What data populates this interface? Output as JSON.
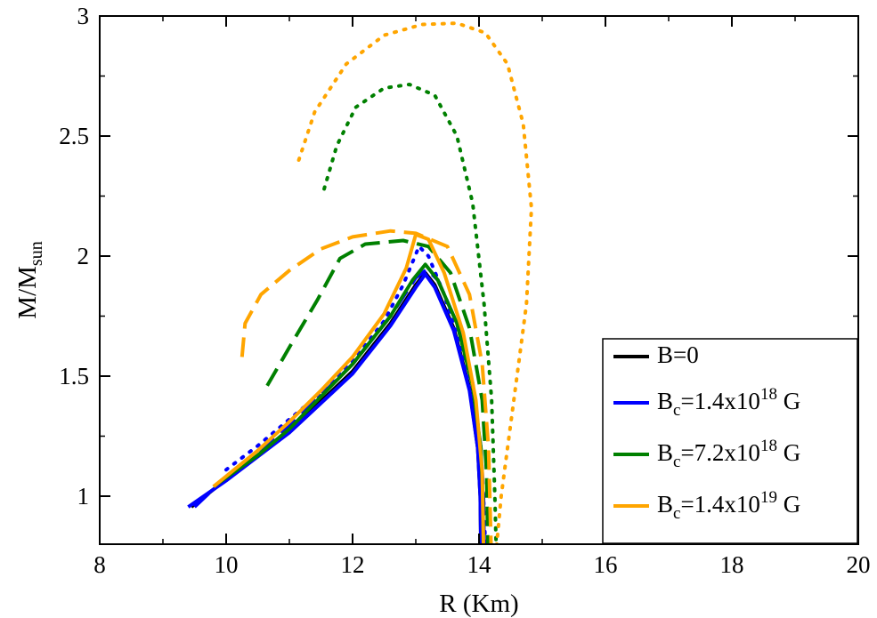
{
  "chart_data": {
    "type": "line",
    "title": "",
    "xlabel": "R (Km)",
    "ylabel": {
      "base": "M/M",
      "sub": "sun"
    },
    "xlim": [
      8,
      20
    ],
    "ylim": [
      0.8,
      3.0
    ],
    "x_ticks": [
      8,
      10,
      12,
      14,
      16,
      18,
      20
    ],
    "x_tick_labels": [
      "8",
      "10",
      "12",
      "14",
      "16",
      "18",
      "20"
    ],
    "y_ticks": [
      1,
      1.5,
      2,
      2.5,
      3
    ],
    "y_tick_labels": [
      "1",
      "1.5",
      "2",
      "2.5",
      "3"
    ],
    "grid": false,
    "legend_position": "bottom-right",
    "legend": [
      {
        "base": "B=0",
        "sub": "",
        "mid": "",
        "sup": "",
        "tail": "",
        "color": "#000000"
      },
      {
        "base": "B",
        "sub": "c",
        "mid": "=1.4x10",
        "sup": "18",
        "tail": " G",
        "color": "#0000ff"
      },
      {
        "base": "B",
        "sub": "c",
        "mid": "=7.2x10",
        "sup": "18",
        "tail": " G",
        "color": "#008000"
      },
      {
        "base": "B",
        "sub": "c",
        "mid": "=1.4x10",
        "sup": "19",
        "tail": " G",
        "color": "#ffa500"
      }
    ],
    "series": [
      {
        "name": "B=0",
        "color": "#000000",
        "style": "solid",
        "points": [
          [
            9.45,
            0.955
          ],
          [
            10,
            1.07
          ],
          [
            11,
            1.27
          ],
          [
            12,
            1.52
          ],
          [
            12.6,
            1.72
          ],
          [
            13.0,
            1.88
          ],
          [
            13.15,
            1.93
          ],
          [
            13.3,
            1.88
          ],
          [
            13.6,
            1.7
          ],
          [
            13.85,
            1.45
          ],
          [
            13.98,
            1.2
          ],
          [
            14.02,
            1.0
          ],
          [
            14.03,
            0.8
          ]
        ]
      },
      {
        "name": "Bc=1.4x10^18 G (parallel)",
        "color": "#0000ff",
        "style": "solid",
        "points": [
          [
            9.4,
            0.955
          ],
          [
            10,
            1.065
          ],
          [
            11,
            1.265
          ],
          [
            12,
            1.51
          ],
          [
            12.6,
            1.71
          ],
          [
            13.0,
            1.87
          ],
          [
            13.15,
            1.925
          ],
          [
            13.3,
            1.87
          ],
          [
            13.6,
            1.69
          ],
          [
            13.85,
            1.44
          ],
          [
            13.98,
            1.2
          ],
          [
            14.02,
            1.0
          ],
          [
            14.03,
            0.8
          ]
        ]
      },
      {
        "name": "Bc=1.4x10^18 G (perpendicular)",
        "color": "#0000ff",
        "style": "dashed",
        "points": [
          [
            9.5,
            0.955
          ],
          [
            10,
            1.08
          ],
          [
            11,
            1.29
          ],
          [
            12,
            1.55
          ],
          [
            12.6,
            1.75
          ],
          [
            13.0,
            1.91
          ],
          [
            13.18,
            1.945
          ],
          [
            13.35,
            1.9
          ],
          [
            13.65,
            1.72
          ],
          [
            13.9,
            1.47
          ],
          [
            14.03,
            1.2
          ],
          [
            14.07,
            1.0
          ],
          [
            14.08,
            0.8
          ]
        ]
      },
      {
        "name": "Bc=1.4x10^18 G (dotted)",
        "color": "#0000ff",
        "style": "dotted",
        "points": [
          [
            10.0,
            1.11
          ],
          [
            10.5,
            1.21
          ],
          [
            11.0,
            1.32
          ],
          [
            11.5,
            1.43
          ],
          [
            12.0,
            1.56
          ],
          [
            12.5,
            1.73
          ],
          [
            12.8,
            1.88
          ],
          [
            13.05,
            2.04
          ],
          [
            13.2,
            2.0
          ],
          [
            13.45,
            1.84
          ],
          [
            13.75,
            1.58
          ],
          [
            13.95,
            1.3
          ],
          [
            14.07,
            1.0
          ],
          [
            14.1,
            0.8
          ]
        ]
      },
      {
        "name": "Bc=7.2x10^18 G (solid)",
        "color": "#008000",
        "style": "solid",
        "points": [
          [
            9.8,
            1.04
          ],
          [
            10.5,
            1.17
          ],
          [
            11,
            1.28
          ],
          [
            12,
            1.55
          ],
          [
            12.6,
            1.75
          ],
          [
            12.95,
            1.9
          ],
          [
            13.15,
            1.965
          ],
          [
            13.35,
            1.9
          ],
          [
            13.65,
            1.72
          ],
          [
            13.9,
            1.46
          ],
          [
            14.03,
            1.2
          ],
          [
            14.06,
            1.0
          ],
          [
            14.07,
            0.8
          ]
        ]
      },
      {
        "name": "Bc=7.2x10^18 G (dashed)",
        "color": "#008000",
        "style": "dashed",
        "points": [
          [
            10.65,
            1.46
          ],
          [
            11.0,
            1.62
          ],
          [
            11.45,
            1.82
          ],
          [
            11.8,
            1.99
          ],
          [
            12.2,
            2.05
          ],
          [
            12.8,
            2.065
          ],
          [
            13.2,
            2.04
          ],
          [
            13.55,
            1.93
          ],
          [
            13.85,
            1.7
          ],
          [
            14.05,
            1.4
          ],
          [
            14.12,
            1.1
          ],
          [
            14.14,
            0.8
          ]
        ]
      },
      {
        "name": "Bc=7.2x10^18 G (dotted)",
        "color": "#008000",
        "style": "dotted",
        "points": [
          [
            11.55,
            2.28
          ],
          [
            11.75,
            2.46
          ],
          [
            12.05,
            2.62
          ],
          [
            12.5,
            2.7
          ],
          [
            12.9,
            2.715
          ],
          [
            13.3,
            2.67
          ],
          [
            13.65,
            2.5
          ],
          [
            13.9,
            2.22
          ],
          [
            14.08,
            1.8
          ],
          [
            14.2,
            1.4
          ],
          [
            14.25,
            1.0
          ],
          [
            14.27,
            0.8
          ]
        ]
      },
      {
        "name": "Bc=1.4x10^19 G (solid)",
        "color": "#ffa500",
        "style": "solid",
        "points": [
          [
            9.8,
            1.04
          ],
          [
            10.5,
            1.19
          ],
          [
            11,
            1.31
          ],
          [
            11.5,
            1.44
          ],
          [
            12,
            1.58
          ],
          [
            12.5,
            1.76
          ],
          [
            12.85,
            1.95
          ],
          [
            13.0,
            2.09
          ],
          [
            13.2,
            2.07
          ],
          [
            13.45,
            1.93
          ],
          [
            13.75,
            1.68
          ],
          [
            13.95,
            1.4
          ],
          [
            14.05,
            1.1
          ],
          [
            14.07,
            0.8
          ]
        ]
      },
      {
        "name": "Bc=1.4x10^19 G (dashed)",
        "color": "#ffa500",
        "style": "dashed",
        "points": [
          [
            10.25,
            1.58
          ],
          [
            10.3,
            1.72
          ],
          [
            10.55,
            1.84
          ],
          [
            11.0,
            1.94
          ],
          [
            11.5,
            2.03
          ],
          [
            12.0,
            2.08
          ],
          [
            12.6,
            2.105
          ],
          [
            13.0,
            2.095
          ],
          [
            13.5,
            2.04
          ],
          [
            13.85,
            1.84
          ],
          [
            14.05,
            1.55
          ],
          [
            14.15,
            1.2
          ],
          [
            14.19,
            0.8
          ]
        ]
      },
      {
        "name": "Bc=1.4x10^19 G (dotted)",
        "color": "#ffa500",
        "style": "dotted",
        "points": [
          [
            11.15,
            2.4
          ],
          [
            11.4,
            2.6
          ],
          [
            11.9,
            2.8
          ],
          [
            12.5,
            2.92
          ],
          [
            13.1,
            2.965
          ],
          [
            13.65,
            2.97
          ],
          [
            14.1,
            2.93
          ],
          [
            14.45,
            2.8
          ],
          [
            14.7,
            2.55
          ],
          [
            14.83,
            2.2
          ],
          [
            14.75,
            1.8
          ],
          [
            14.55,
            1.4
          ],
          [
            14.35,
            1.0
          ],
          [
            14.28,
            0.8
          ]
        ]
      }
    ]
  }
}
